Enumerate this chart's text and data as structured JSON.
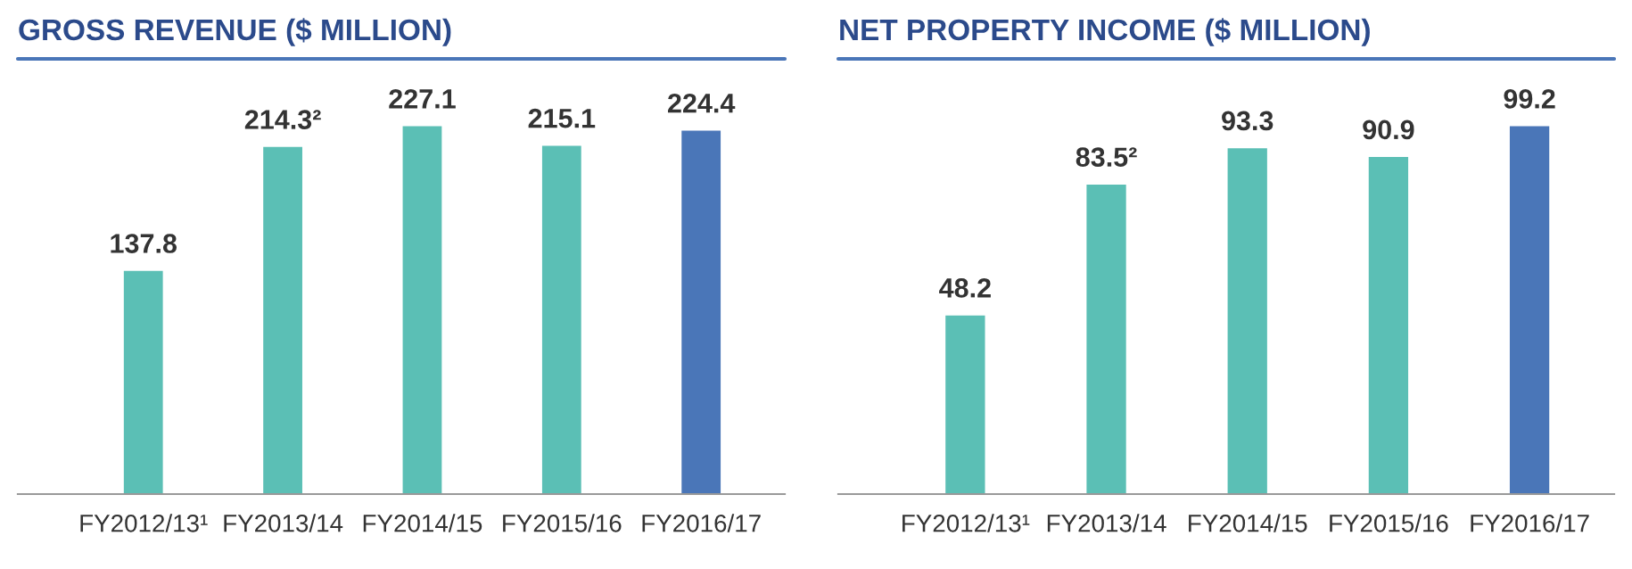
{
  "chart_data": [
    {
      "type": "bar",
      "title": "GROSS REVENUE ($ MILLION)",
      "categories": [
        "FY2012/13¹",
        "FY2013/14",
        "FY2014/15",
        "FY2015/16",
        "FY2016/17"
      ],
      "values": [
        137.8,
        214.3,
        227.1,
        215.1,
        224.4
      ],
      "colors": [
        "#5bbfb5",
        "#5bbfb5",
        "#5bbfb5",
        "#5bbfb5",
        "#4a76b8"
      ],
      "value_labels": [
        "137.8",
        "214.3²",
        "227.1",
        "215.1",
        "224.4"
      ],
      "grid": false,
      "legend": false
    },
    {
      "type": "bar",
      "title": "NET PROPERTY INCOME ($ MILLION)",
      "categories": [
        "FY2012/13¹",
        "FY2013/14",
        "FY2014/15",
        "FY2015/16",
        "FY2016/17"
      ],
      "values": [
        48.2,
        83.5,
        93.3,
        90.9,
        99.2
      ],
      "colors": [
        "#5bbfb5",
        "#5bbfb5",
        "#5bbfb5",
        "#5bbfb5",
        "#4a76b8"
      ],
      "value_labels": [
        "48.2",
        "83.5²",
        "93.3",
        "90.9",
        "99.2"
      ],
      "grid": false,
      "legend": false
    }
  ]
}
